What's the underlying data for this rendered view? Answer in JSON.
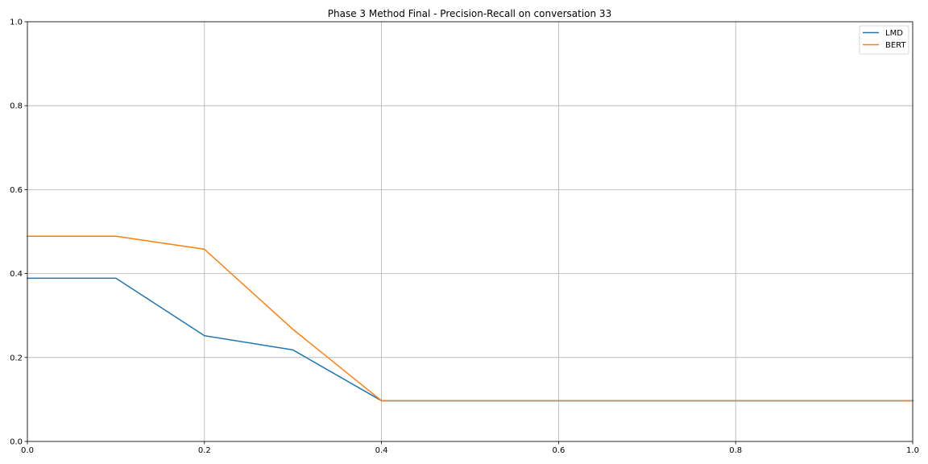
{
  "chart_data": {
    "type": "line",
    "title": "Phase 3 Method Final - Precision-Recall on conversation 33",
    "xlabel": "",
    "ylabel": "",
    "xlim": [
      0.0,
      1.0
    ],
    "ylim": [
      0.0,
      1.0
    ],
    "x_ticks": [
      "0.0",
      "0.2",
      "0.4",
      "0.6",
      "0.8",
      "1.0"
    ],
    "y_ticks": [
      "0.0",
      "0.2",
      "0.4",
      "0.6",
      "0.8",
      "1.0"
    ],
    "grid": true,
    "legend_position": "top-right",
    "x": [
      0.0,
      0.1,
      0.2,
      0.3,
      0.4,
      0.5,
      0.6,
      0.7,
      0.8,
      0.9,
      1.0
    ],
    "series": [
      {
        "name": "LMD",
        "color": "#1f77b4",
        "values": [
          0.389,
          0.389,
          0.252,
          0.218,
          0.097,
          0.097,
          0.097,
          0.097,
          0.097,
          0.097,
          0.097
        ]
      },
      {
        "name": "BERT",
        "color": "#ff7f0e",
        "values": [
          0.489,
          0.489,
          0.458,
          0.267,
          0.097,
          0.097,
          0.097,
          0.097,
          0.097,
          0.097,
          0.097
        ]
      }
    ]
  }
}
